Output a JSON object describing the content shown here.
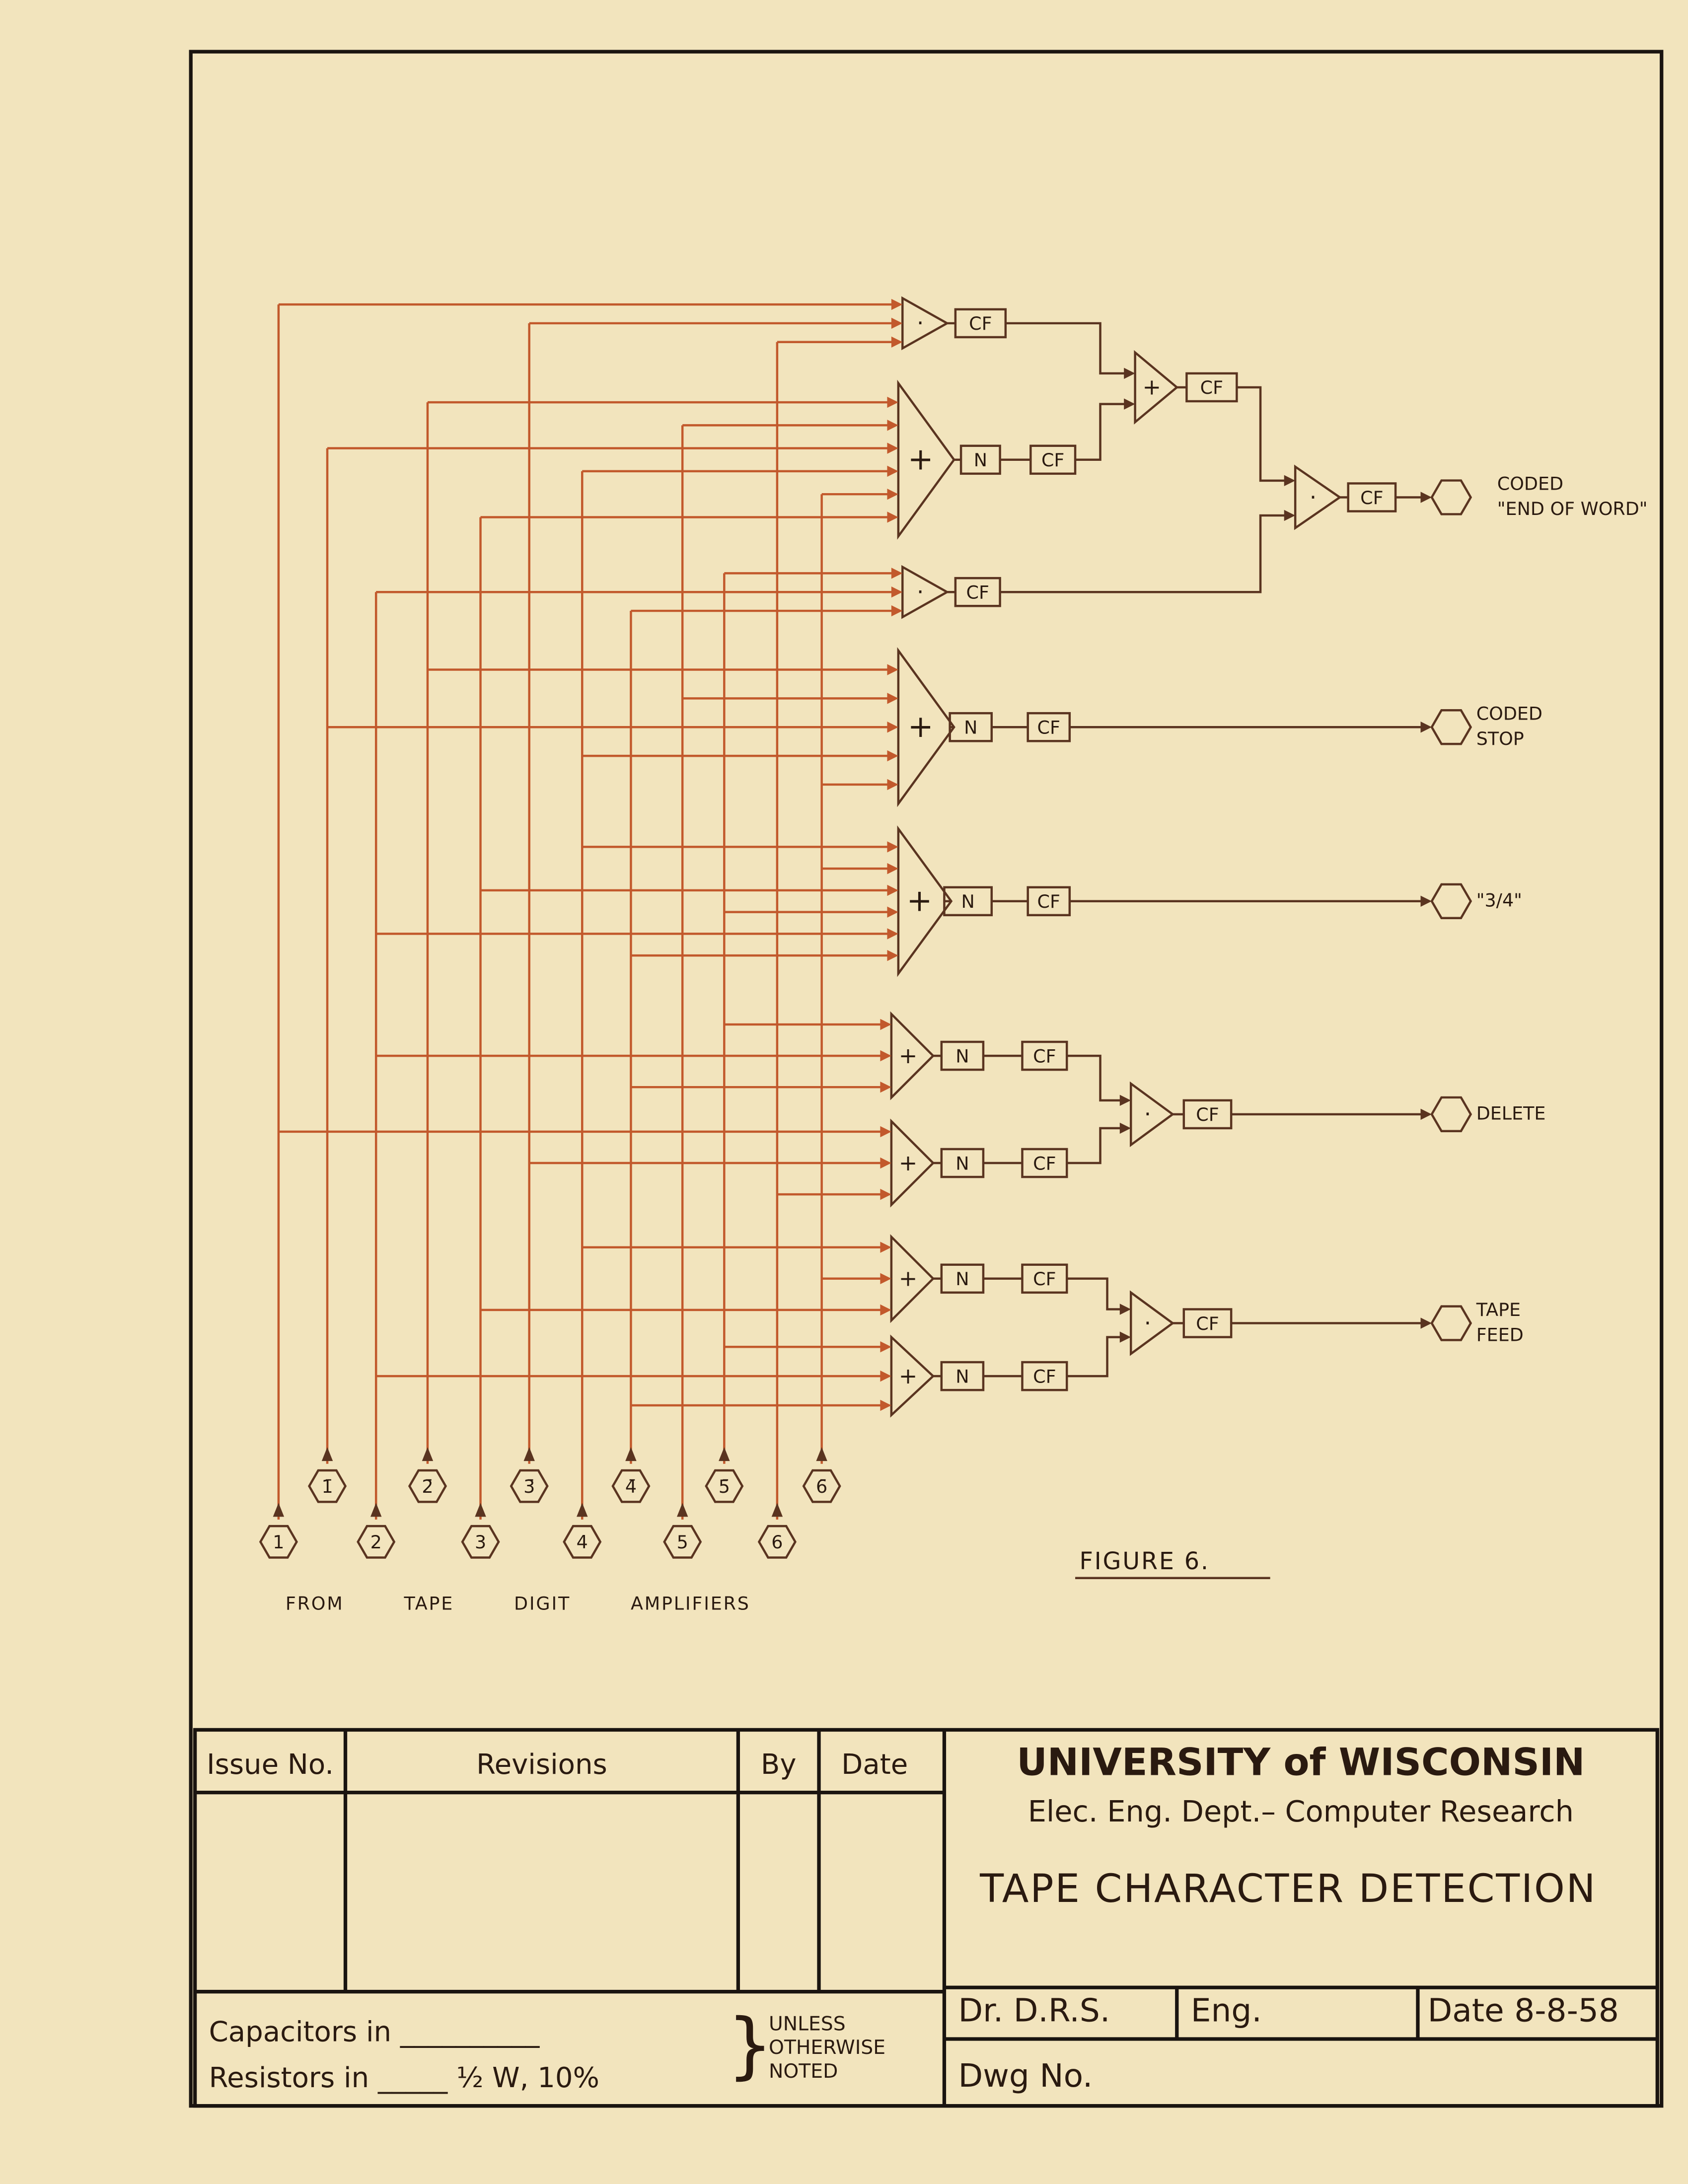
{
  "diagram": {
    "gates": [
      {
        "op": "·",
        "stages": [
          "CF"
        ]
      },
      {
        "op": "+",
        "stages": [
          "N",
          "CF"
        ]
      },
      {
        "op": "+",
        "stages": [
          "CF"
        ]
      },
      {
        "op": "·",
        "stages": [
          "CF"
        ]
      },
      {
        "op": "·",
        "stages": [
          "CF"
        ]
      },
      {
        "op": "+",
        "stages": [
          "N",
          "CF"
        ]
      },
      {
        "op": "+",
        "stages": [
          "N",
          "CF"
        ]
      },
      {
        "op": "+",
        "stages": [
          "N",
          "CF"
        ]
      },
      {
        "op": "+",
        "stages": [
          "N",
          "CF"
        ]
      },
      {
        "op": "·",
        "stages": [
          "CF"
        ]
      },
      {
        "op": "+",
        "stages": [
          "N",
          "CF"
        ]
      },
      {
        "op": "+",
        "stages": [
          "N",
          "CF"
        ]
      },
      {
        "op": "·",
        "stages": [
          "CF"
        ]
      }
    ],
    "outputs": [
      [
        "CODED",
        "\"END OF WORD\""
      ],
      [
        "CODED",
        "STOP"
      ],
      [
        "\"3/4\""
      ],
      [
        "DELETE"
      ],
      [
        "TAPE",
        "FEED"
      ]
    ],
    "inputs": [
      "1",
      "1̄",
      "2",
      "2̄",
      "3",
      "3̄",
      "4",
      "4̄",
      "5",
      "5̄",
      "6",
      "6̄"
    ],
    "source_caption": "FROM TAPE DIGIT AMPLIFIERS",
    "figure": "FIGURE 6."
  },
  "title_block": {
    "headers": [
      "Issue No.",
      "Revisions",
      "By",
      "Date"
    ],
    "university": "UNIVERSITY of WISCONSIN",
    "department": "Elec. Eng. Dept.– Computer Research",
    "title": "TAPE CHARACTER DETECTION",
    "drawn": "Dr. D.R.S.",
    "eng": "Eng.",
    "date": "Date 8-8-58",
    "dwg": "Dwg No.",
    "capacitors": "Capacitors in __________",
    "resistors": "Resistors in _____ ½ W, 10%",
    "note": [
      "UNLESS",
      "OTHERWISE",
      "NOTED"
    ]
  }
}
